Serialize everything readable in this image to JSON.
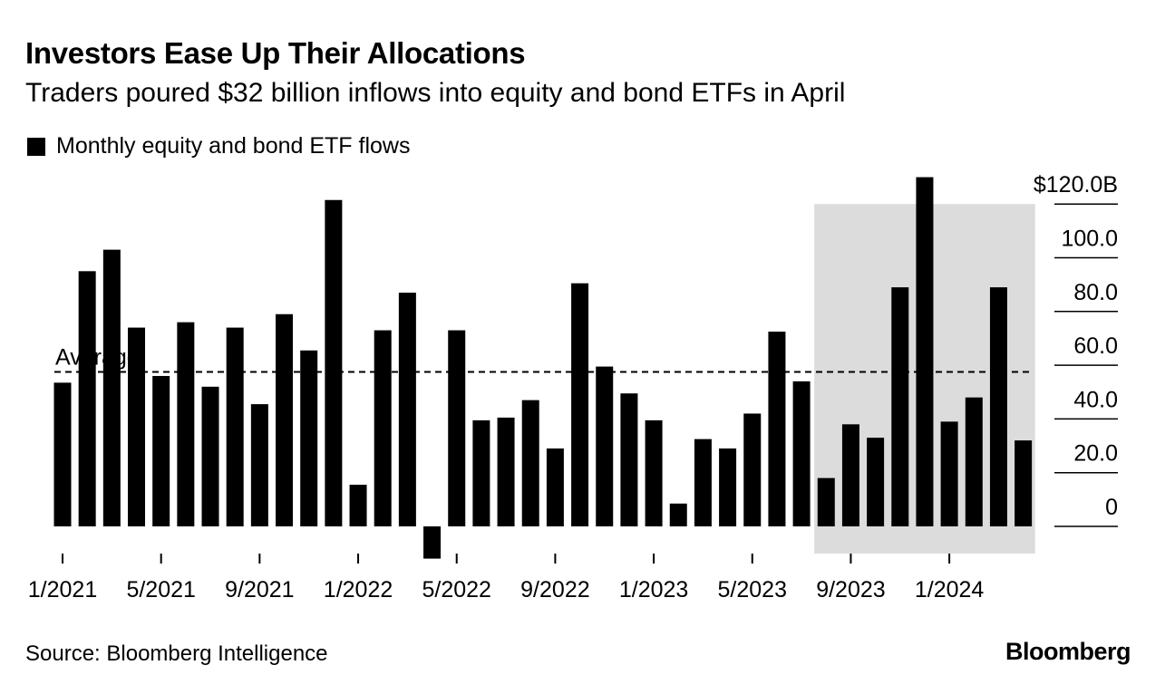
{
  "title": "Investors Ease Up Their Allocations",
  "subtitle": "Traders poured $32 billion inflows into equity and bond ETFs in April",
  "source": "Source: Bloomberg Intelligence",
  "brand": "Bloomberg",
  "chart_data": {
    "type": "bar",
    "legend": [
      {
        "label": "Monthly equity and bond ETF flows",
        "color": "#000000"
      }
    ],
    "categories": [
      "1/2021",
      "2/2021",
      "3/2021",
      "4/2021",
      "5/2021",
      "6/2021",
      "7/2021",
      "8/2021",
      "9/2021",
      "10/2021",
      "11/2021",
      "12/2021",
      "1/2022",
      "2/2022",
      "3/2022",
      "4/2022",
      "5/2022",
      "6/2022",
      "7/2022",
      "8/2022",
      "9/2022",
      "10/2022",
      "11/2022",
      "12/2022",
      "1/2023",
      "2/2023",
      "3/2023",
      "4/2023",
      "5/2023",
      "6/2023",
      "7/2023",
      "8/2023",
      "9/2023",
      "10/2023",
      "11/2023",
      "12/2023",
      "1/2024",
      "2/2024",
      "3/2024",
      "4/2024"
    ],
    "values": [
      53.5,
      95,
      103,
      74,
      56,
      76,
      52,
      74,
      45.5,
      79,
      65.5,
      121.5,
      15.5,
      73,
      87,
      -12,
      73,
      39.5,
      40.5,
      47,
      29,
      90.5,
      59.5,
      49.5,
      39.5,
      8.5,
      32.5,
      29,
      42,
      72.5,
      54,
      18,
      38,
      33,
      89,
      130,
      39,
      48,
      89,
      32
    ],
    "x_tick_labels": [
      "1/2021",
      "5/2021",
      "9/2021",
      "1/2022",
      "5/2022",
      "9/2022",
      "1/2023",
      "5/2023",
      "9/2023",
      "1/2024"
    ],
    "y_tick_labels": [
      "$120.0B",
      "100.0",
      "80.0",
      "60.0",
      "40.0",
      "20.0",
      "0"
    ],
    "y_ticks": [
      120,
      100,
      80,
      60,
      40,
      20,
      0
    ],
    "ylim": [
      -15,
      130
    ],
    "average": 57.5,
    "average_label": "Average",
    "highlight_range": [
      "8/2023",
      "4/2024"
    ],
    "highlight_color": "#dcdcdc",
    "bar_color": "#000000"
  }
}
